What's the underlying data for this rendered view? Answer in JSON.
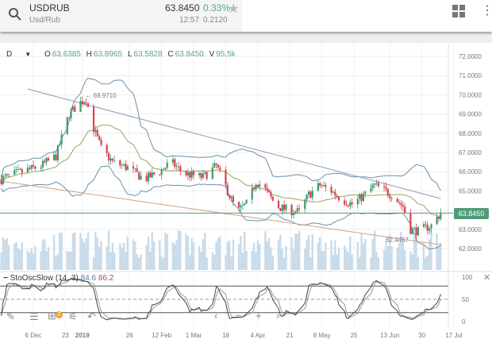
{
  "header": {
    "symbol": "USDRUB",
    "description": "Usd/Rub",
    "last_price": "63.8450",
    "change_pct": "0.33%",
    "time": "12:57",
    "change": "0.2120",
    "icons": [
      "search-icon",
      "star-icon",
      "grid-icon",
      "more-vertical-icon"
    ]
  },
  "legend": {
    "interval": "D",
    "open_label": "O",
    "open": "63.6385",
    "high_label": "H",
    "high": "63.8965",
    "low_label": "L",
    "low": "63.5828",
    "close_label": "C",
    "close": "63.8450",
    "volume_label": "V",
    "volume": "95.5k"
  },
  "price_axis": {
    "ticks": [
      "72.0000",
      "71.0000",
      "70.0000",
      "69.0000",
      "68.0000",
      "67.0000",
      "66.0000",
      "65.0000",
      "63.0000",
      "62.0000"
    ],
    "tick_values": [
      72,
      71,
      70,
      69,
      68,
      67,
      66,
      65,
      63,
      62
    ],
    "current_price_label": "63.8450",
    "current_price": 63.845
  },
  "annotations": {
    "high_label": "69.9710",
    "high_value": 69.971,
    "high_date": "2018-12-31",
    "low_label": "62.4457",
    "low_value": 62.4457,
    "low_date": "2019-06-26"
  },
  "stochastic": {
    "name": "StoOscSlow (14, 3)",
    "k": "84.6",
    "d": "86.2",
    "ticks": [
      "100",
      "50",
      "0"
    ],
    "levels": [
      80,
      50,
      20
    ]
  },
  "date_axis": {
    "ticks": [
      {
        "label": "6 Dec",
        "date": "2018-12-06"
      },
      {
        "label": "23",
        "date": "2018-12-23"
      },
      {
        "label": "2019",
        "date": "2019-01-01"
      },
      {
        "label": "26",
        "date": "2019-01-26"
      },
      {
        "label": "12 Feb",
        "date": "2019-02-12"
      },
      {
        "label": "1 Mar",
        "date": "2019-03-01"
      },
      {
        "label": "18",
        "date": "2019-03-18"
      },
      {
        "label": "4 Apr",
        "date": "2019-04-04"
      },
      {
        "label": "21",
        "date": "2019-04-21"
      },
      {
        "label": "8 May",
        "date": "2019-05-08"
      },
      {
        "label": "25",
        "date": "2019-05-25"
      },
      {
        "label": "13 Jun",
        "date": "2019-06-13"
      },
      {
        "label": "30",
        "date": "2019-06-30"
      },
      {
        "label": "17 Jul",
        "date": "2019-07-17"
      }
    ]
  },
  "toolbar": {
    "badge_count": "2",
    "icons": [
      "pencil-icon",
      "list-icon",
      "add-study-icon",
      "settings-sliders-icon",
      "undo-icon"
    ],
    "nav": {
      "prev": "‹",
      "zoom_out": "−",
      "zoom_in": "+",
      "next": "›"
    }
  },
  "colors": {
    "up": "#3f9a6e",
    "down": "#d9434f",
    "band": "#6c8fa8",
    "ma": "#9aa060",
    "trend_upper": "#8a9ab0",
    "trend_lower": "#d0a080",
    "volume": "#c9dbea",
    "price_line": "#4f9c78"
  },
  "chart_data": {
    "type": "candlestick",
    "indicators": [
      "bollinger-bands",
      "moving-average",
      "volume",
      "stochastic-slow"
    ],
    "close_path": [
      [
        "2018-11-19",
        65.6
      ],
      [
        "2018-11-27",
        65.9
      ],
      [
        "2018-12-10",
        66.3
      ],
      [
        "2018-12-18",
        66.8
      ],
      [
        "2018-12-25",
        69.0
      ],
      [
        "2018-12-31",
        69.6
      ],
      [
        "2019-01-03",
        69.8
      ],
      [
        "2019-01-06",
        68.5
      ],
      [
        "2019-01-11",
        67.2
      ],
      [
        "2019-01-17",
        66.5
      ],
      [
        "2019-01-25",
        66.2
      ],
      [
        "2019-02-03",
        65.6
      ],
      [
        "2019-02-11",
        66.0
      ],
      [
        "2019-02-17",
        66.5
      ],
      [
        "2019-02-24",
        65.9
      ],
      [
        "2019-03-06",
        65.7
      ],
      [
        "2019-03-13",
        66.3
      ],
      [
        "2019-03-19",
        65.0
      ],
      [
        "2019-03-24",
        63.9
      ],
      [
        "2019-03-30",
        64.4
      ],
      [
        "2019-04-03",
        65.5
      ],
      [
        "2019-04-07",
        65.2
      ],
      [
        "2019-04-14",
        64.2
      ],
      [
        "2019-04-20",
        64.0
      ],
      [
        "2019-04-26",
        63.9
      ],
      [
        "2019-05-01",
        64.8
      ],
      [
        "2019-05-07",
        65.3
      ],
      [
        "2019-05-13",
        65.0
      ],
      [
        "2019-05-18",
        64.6
      ],
      [
        "2019-05-24",
        64.3
      ],
      [
        "2019-06-01",
        64.9
      ],
      [
        "2019-06-05",
        65.3
      ],
      [
        "2019-06-14",
        64.8
      ],
      [
        "2019-06-20",
        64.2
      ],
      [
        "2019-06-24",
        63.0
      ],
      [
        "2019-06-28",
        62.9
      ],
      [
        "2019-07-05",
        63.2
      ],
      [
        "2019-07-10",
        63.845
      ]
    ],
    "trend_upper": [
      [
        "2018-12-28",
        69.97
      ],
      [
        "2019-07-10",
        64.6
      ]
    ],
    "trend_lower": [
      [
        "2018-11-19",
        65.5
      ],
      [
        "2019-07-10",
        62.2
      ]
    ],
    "y_range": [
      61.5,
      72.5
    ],
    "grid": true
  }
}
